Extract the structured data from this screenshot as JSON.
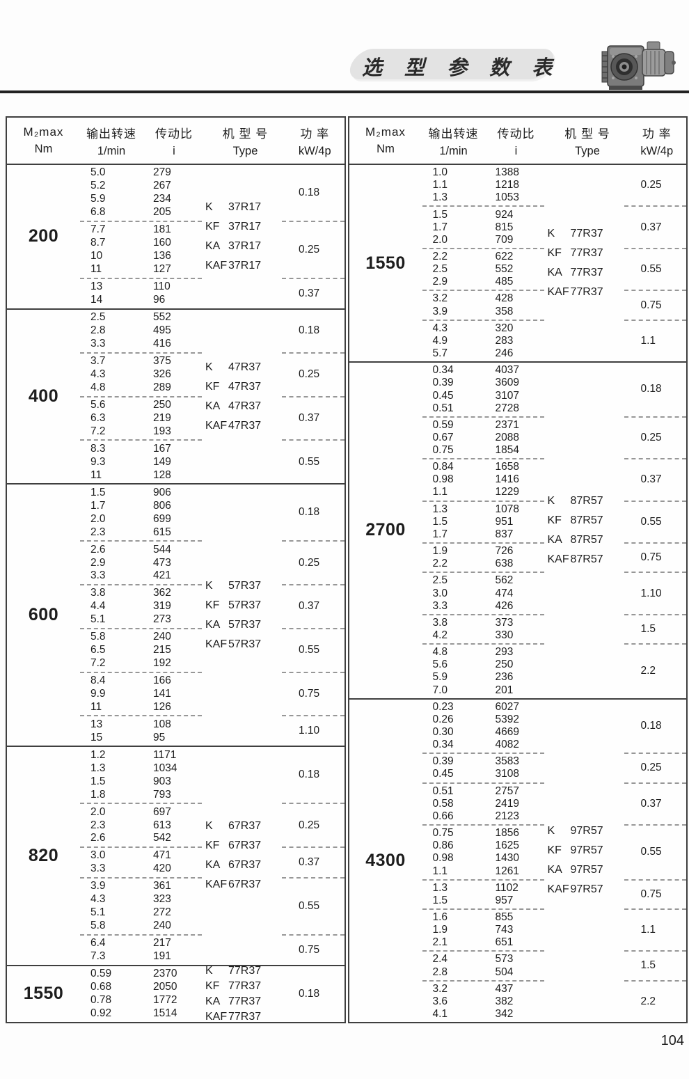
{
  "page": {
    "number": "104"
  },
  "header": {
    "title": "选 型 参 数 表",
    "banner_color": "#e3e3e3",
    "motor_image": "gearmotor-photo"
  },
  "table_header": {
    "torque_line1": "M₂max",
    "torque_line2": "Nm",
    "speed_line1": "输出转速",
    "speed_line2": "1/min",
    "ratio_line1": "传动比",
    "ratio_line2": "i",
    "type_line1": "机 型 号",
    "type_line2": "Type",
    "power_line1": "功 率",
    "power_line2": "kW/4p"
  },
  "tables": [
    {
      "id": "left",
      "sections": [
        {
          "torque": "200",
          "types": [
            {
              "series": "K",
              "model": "37R17"
            },
            {
              "series": "KF",
              "model": "37R17"
            },
            {
              "series": "KA",
              "model": "37R17"
            },
            {
              "series": "KAF",
              "model": "37R17"
            }
          ],
          "groups": [
            {
              "rows": [
                [
                  "5.0",
                  "279"
                ],
                [
                  "5.2",
                  "267"
                ],
                [
                  "5.9",
                  "234"
                ],
                [
                  "6.8",
                  "205"
                ]
              ],
              "power": "0.18"
            },
            {
              "rows": [
                [
                  "7.7",
                  "181"
                ],
                [
                  "8.7",
                  "160"
                ],
                [
                  "10",
                  "136"
                ],
                [
                  "11",
                  "127"
                ]
              ],
              "power": "0.25"
            },
            {
              "rows": [
                [
                  "13",
                  "110"
                ],
                [
                  "14",
                  "96"
                ]
              ],
              "power": "0.37"
            }
          ]
        },
        {
          "torque": "400",
          "types": [
            {
              "series": "K",
              "model": "47R37"
            },
            {
              "series": "KF",
              "model": "47R37"
            },
            {
              "series": "KA",
              "model": "47R37"
            },
            {
              "series": "KAF",
              "model": "47R37"
            }
          ],
          "groups": [
            {
              "rows": [
                [
                  "2.5",
                  "552"
                ],
                [
                  "2.8",
                  "495"
                ],
                [
                  "3.3",
                  "416"
                ]
              ],
              "power": "0.18"
            },
            {
              "rows": [
                [
                  "3.7",
                  "375"
                ],
                [
                  "4.3",
                  "326"
                ],
                [
                  "4.8",
                  "289"
                ]
              ],
              "power": "0.25"
            },
            {
              "rows": [
                [
                  "5.6",
                  "250"
                ],
                [
                  "6.3",
                  "219"
                ],
                [
                  "7.2",
                  "193"
                ]
              ],
              "power": "0.37"
            },
            {
              "rows": [
                [
                  "8.3",
                  "167"
                ],
                [
                  "9.3",
                  "149"
                ],
                [
                  "11",
                  "128"
                ]
              ],
              "power": "0.55"
            }
          ]
        },
        {
          "torque": "600",
          "types": [
            {
              "series": "K",
              "model": "57R37"
            },
            {
              "series": "KF",
              "model": "57R37"
            },
            {
              "series": "KA",
              "model": "57R37"
            },
            {
              "series": "KAF",
              "model": "57R37"
            }
          ],
          "groups": [
            {
              "rows": [
                [
                  "1.5",
                  "906"
                ],
                [
                  "1.7",
                  "806"
                ],
                [
                  "2.0",
                  "699"
                ],
                [
                  "2.3",
                  "615"
                ]
              ],
              "power": "0.18"
            },
            {
              "rows": [
                [
                  "2.6",
                  "544"
                ],
                [
                  "2.9",
                  "473"
                ],
                [
                  "3.3",
                  "421"
                ]
              ],
              "power": "0.25"
            },
            {
              "rows": [
                [
                  "3.8",
                  "362"
                ],
                [
                  "4.4",
                  "319"
                ],
                [
                  "5.1",
                  "273"
                ]
              ],
              "power": "0.37"
            },
            {
              "rows": [
                [
                  "5.8",
                  "240"
                ],
                [
                  "6.5",
                  "215"
                ],
                [
                  "7.2",
                  "192"
                ]
              ],
              "power": "0.55"
            },
            {
              "rows": [
                [
                  "8.4",
                  "166"
                ],
                [
                  "9.9",
                  "141"
                ],
                [
                  "11",
                  "126"
                ]
              ],
              "power": "0.75"
            },
            {
              "rows": [
                [
                  "13",
                  "108"
                ],
                [
                  "15",
                  "95"
                ]
              ],
              "power": "1.10"
            }
          ]
        },
        {
          "torque": "820",
          "types": [
            {
              "series": "K",
              "model": "67R37"
            },
            {
              "series": "KF",
              "model": "67R37"
            },
            {
              "series": "KA",
              "model": "67R37"
            },
            {
              "series": "KAF",
              "model": "67R37"
            }
          ],
          "groups": [
            {
              "rows": [
                [
                  "1.2",
                  "1171"
                ],
                [
                  "1.3",
                  "1034"
                ],
                [
                  "1.5",
                  "903"
                ],
                [
                  "1.8",
                  "793"
                ]
              ],
              "power": "0.18"
            },
            {
              "rows": [
                [
                  "2.0",
                  "697"
                ],
                [
                  "2.3",
                  "613"
                ],
                [
                  "2.6",
                  "542"
                ]
              ],
              "power": "0.25"
            },
            {
              "rows": [
                [
                  "3.0",
                  "471"
                ],
                [
                  "3.3",
                  "420"
                ]
              ],
              "power": "0.37"
            },
            {
              "rows": [
                [
                  "3.9",
                  "361"
                ],
                [
                  "4.3",
                  "323"
                ],
                [
                  "5.1",
                  "272"
                ],
                [
                  "5.8",
                  "240"
                ]
              ],
              "power": "0.55"
            },
            {
              "rows": [
                [
                  "6.4",
                  "217"
                ],
                [
                  "7.3",
                  "191"
                ]
              ],
              "power": "0.75"
            }
          ]
        },
        {
          "torque": "1550",
          "types": [
            {
              "series": "K",
              "model": "77R37"
            },
            {
              "series": "KF",
              "model": "77R37"
            },
            {
              "series": "KA",
              "model": "77R37"
            },
            {
              "series": "KAF",
              "model": "77R37"
            }
          ],
          "groups": [
            {
              "rows": [
                [
                  "0.59",
                  "2370"
                ],
                [
                  "0.68",
                  "2050"
                ],
                [
                  "0.78",
                  "1772"
                ],
                [
                  "0.92",
                  "1514"
                ]
              ],
              "power": "0.18"
            }
          ]
        }
      ]
    },
    {
      "id": "right",
      "sections": [
        {
          "torque": "1550",
          "types": [
            {
              "series": "K",
              "model": "77R37"
            },
            {
              "series": "KF",
              "model": "77R37"
            },
            {
              "series": "KA",
              "model": "77R37"
            },
            {
              "series": "KAF",
              "model": "77R37"
            }
          ],
          "groups": [
            {
              "rows": [
                [
                  "1.0",
                  "1388"
                ],
                [
                  "1.1",
                  "1218"
                ],
                [
                  "1.3",
                  "1053"
                ]
              ],
              "power": "0.25"
            },
            {
              "rows": [
                [
                  "1.5",
                  "924"
                ],
                [
                  "1.7",
                  "815"
                ],
                [
                  "2.0",
                  "709"
                ]
              ],
              "power": "0.37"
            },
            {
              "rows": [
                [
                  "2.2",
                  "622"
                ],
                [
                  "2.5",
                  "552"
                ],
                [
                  "2.9",
                  "485"
                ]
              ],
              "power": "0.55"
            },
            {
              "rows": [
                [
                  "3.2",
                  "428"
                ],
                [
                  "3.9",
                  "358"
                ]
              ],
              "power": "0.75"
            },
            {
              "rows": [
                [
                  "4.3",
                  "320"
                ],
                [
                  "4.9",
                  "283"
                ],
                [
                  "5.7",
                  "246"
                ]
              ],
              "power": "1.1"
            }
          ]
        },
        {
          "torque": "2700",
          "types": [
            {
              "series": "K",
              "model": "87R57"
            },
            {
              "series": "KF",
              "model": "87R57"
            },
            {
              "series": "KA",
              "model": "87R57"
            },
            {
              "series": "KAF",
              "model": "87R57"
            }
          ],
          "groups": [
            {
              "rows": [
                [
                  "0.34",
                  "4037"
                ],
                [
                  "0.39",
                  "3609"
                ],
                [
                  "0.45",
                  "3107"
                ],
                [
                  "0.51",
                  "2728"
                ]
              ],
              "power": "0.18"
            },
            {
              "rows": [
                [
                  "0.59",
                  "2371"
                ],
                [
                  "0.67",
                  "2088"
                ],
                [
                  "0.75",
                  "1854"
                ]
              ],
              "power": "0.25"
            },
            {
              "rows": [
                [
                  "0.84",
                  "1658"
                ],
                [
                  "0.98",
                  "1416"
                ],
                [
                  "1.1",
                  "1229"
                ]
              ],
              "power": "0.37"
            },
            {
              "rows": [
                [
                  "1.3",
                  "1078"
                ],
                [
                  "1.5",
                  "951"
                ],
                [
                  "1.7",
                  "837"
                ]
              ],
              "power": "0.55"
            },
            {
              "rows": [
                [
                  "1.9",
                  "726"
                ],
                [
                  "2.2",
                  "638"
                ]
              ],
              "power": "0.75"
            },
            {
              "rows": [
                [
                  "2.5",
                  "562"
                ],
                [
                  "3.0",
                  "474"
                ],
                [
                  "3.3",
                  "426"
                ]
              ],
              "power": "1.10"
            },
            {
              "rows": [
                [
                  "3.8",
                  "373"
                ],
                [
                  "4.2",
                  "330"
                ]
              ],
              "power": "1.5"
            },
            {
              "rows": [
                [
                  "4.8",
                  "293"
                ],
                [
                  "5.6",
                  "250"
                ],
                [
                  "5.9",
                  "236"
                ],
                [
                  "7.0",
                  "201"
                ]
              ],
              "power": "2.2"
            }
          ]
        },
        {
          "torque": "4300",
          "types": [
            {
              "series": "K",
              "model": "97R57"
            },
            {
              "series": "KF",
              "model": "97R57"
            },
            {
              "series": "KA",
              "model": "97R57"
            },
            {
              "series": "KAF",
              "model": "97R57"
            }
          ],
          "groups": [
            {
              "rows": [
                [
                  "0.23",
                  "6027"
                ],
                [
                  "0.26",
                  "5392"
                ],
                [
                  "0.30",
                  "4669"
                ],
                [
                  "0.34",
                  "4082"
                ]
              ],
              "power": "0.18"
            },
            {
              "rows": [
                [
                  "0.39",
                  "3583"
                ],
                [
                  "0.45",
                  "3108"
                ]
              ],
              "power": "0.25"
            },
            {
              "rows": [
                [
                  "0.51",
                  "2757"
                ],
                [
                  "0.58",
                  "2419"
                ],
                [
                  "0.66",
                  "2123"
                ]
              ],
              "power": "0.37"
            },
            {
              "rows": [
                [
                  "0.75",
                  "1856"
                ],
                [
                  "0.86",
                  "1625"
                ],
                [
                  "0.98",
                  "1430"
                ],
                [
                  "1.1",
                  "1261"
                ]
              ],
              "power": "0.55"
            },
            {
              "rows": [
                [
                  "1.3",
                  "1102"
                ],
                [
                  "1.5",
                  "957"
                ]
              ],
              "power": "0.75"
            },
            {
              "rows": [
                [
                  "1.6",
                  "855"
                ],
                [
                  "1.9",
                  "743"
                ],
                [
                  "2.1",
                  "651"
                ]
              ],
              "power": "1.1"
            },
            {
              "rows": [
                [
                  "2.4",
                  "573"
                ],
                [
                  "2.8",
                  "504"
                ]
              ],
              "power": "1.5"
            },
            {
              "rows": [
                [
                  "3.2",
                  "437"
                ],
                [
                  "3.6",
                  "382"
                ],
                [
                  "4.1",
                  "342"
                ]
              ],
              "power": "2.2"
            }
          ]
        }
      ]
    }
  ]
}
